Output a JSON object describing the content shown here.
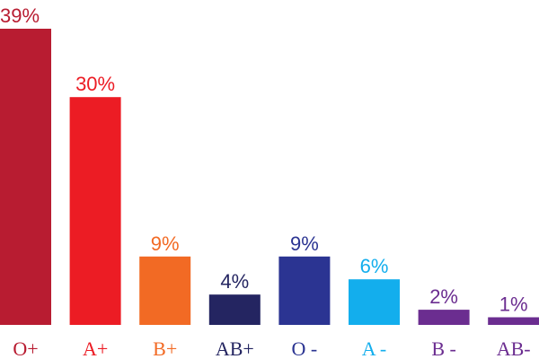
{
  "chart_data": {
    "type": "bar",
    "title": "",
    "xlabel": "",
    "ylabel": "",
    "ylim": [
      0,
      40
    ],
    "grid": false,
    "categories": [
      "O+",
      "A+",
      "B+",
      "AB+",
      "O -",
      "A -",
      "B -",
      "AB-"
    ],
    "values": [
      39,
      30,
      9,
      4,
      9,
      6,
      2,
      1
    ],
    "value_labels": [
      "39%",
      "30%",
      "9%",
      "4%",
      "9%",
      "6%",
      "2%",
      "1%"
    ],
    "colors": [
      "#b81c31",
      "#ec1c24",
      "#f26a24",
      "#242561",
      "#2b3492",
      "#13aeed",
      "#6b2d90",
      "#6b2d90"
    ],
    "label_colors": [
      "#b81c31",
      "#ec1c24",
      "#f26a24",
      "#242561",
      "#2b3492",
      "#13aeed",
      "#6b2d90",
      "#6b2d90"
    ]
  }
}
